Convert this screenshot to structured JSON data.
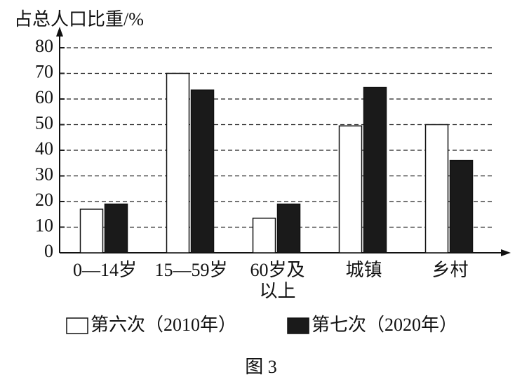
{
  "chart_data": {
    "type": "bar",
    "y_label": "占总人口比重/%",
    "categories": [
      "0—14岁",
      "15—59岁",
      "60岁及\n以上",
      "城镇",
      "乡村"
    ],
    "series": [
      {
        "name": "第六次（2010年）",
        "color": "#ffffff",
        "values": [
          17,
          70,
          13.5,
          49.5,
          50
        ]
      },
      {
        "name": "第七次（2020年）",
        "color": "#1a1a1a",
        "values": [
          19,
          63.5,
          19,
          64.5,
          36
        ]
      }
    ],
    "ylim": [
      0,
      80
    ],
    "yticks": [
      0,
      10,
      20,
      30,
      40,
      50,
      60,
      70,
      80
    ],
    "grid": true,
    "caption": "图 3"
  }
}
